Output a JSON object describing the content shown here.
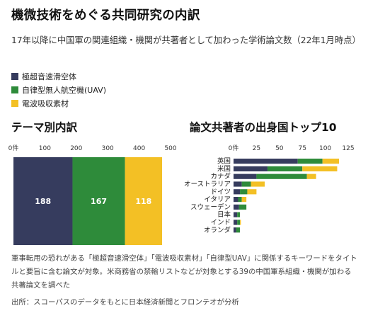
{
  "header": {
    "title": "機微技術をめぐる共同研究の内訳",
    "subtitle": "17年以降に中国軍の関連組織・機関が共著者として加わった学術論文数（22年1月時点）"
  },
  "legend": [
    {
      "label": "極超音速滑空体",
      "color": "#363c5e"
    },
    {
      "label": "自律型無人航空機(UAV)",
      "color": "#2e8b3a"
    },
    {
      "label": "電波吸収素材",
      "color": "#f3c025"
    }
  ],
  "chart_data": [
    {
      "type": "bar",
      "orientation": "horizontal",
      "stacked": true,
      "title": "テーマ別内訳",
      "xlim": [
        0,
        500
      ],
      "ticks": [
        0,
        100,
        200,
        300,
        400,
        500
      ],
      "tick_labels": [
        "0件",
        "100",
        "200",
        "300",
        "400",
        "500"
      ],
      "categories": [
        ""
      ],
      "series": [
        {
          "name": "極超音速滑空体",
          "values": [
            188
          ]
        },
        {
          "name": "自律型無人航空機(UAV)",
          "values": [
            167
          ]
        },
        {
          "name": "電波吸収素材",
          "values": [
            118
          ]
        }
      ],
      "data_labels": [
        "188",
        "167",
        "118"
      ]
    },
    {
      "type": "bar",
      "orientation": "horizontal",
      "stacked": true,
      "title": "論文共著者の出身国トップ10",
      "xlim": [
        0,
        125
      ],
      "ticks": [
        0,
        25,
        50,
        75,
        100,
        125
      ],
      "tick_labels": [
        "0件",
        "25",
        "50",
        "75",
        "100",
        "125"
      ],
      "categories": [
        "英国",
        "米国",
        "カナダ",
        "オーストラリア",
        "ドイツ",
        "イタリア",
        "スウェーデン",
        "日本",
        "インド",
        "オランダ"
      ],
      "series": [
        {
          "name": "極超音速滑空体",
          "values": [
            70,
            37,
            25,
            9,
            7,
            5,
            6,
            4,
            4,
            3
          ]
        },
        {
          "name": "自律型無人航空機(UAV)",
          "values": [
            27,
            38,
            55,
            10,
            8,
            4,
            8,
            3,
            3,
            4
          ]
        },
        {
          "name": "電波吸収素材",
          "values": [
            18,
            38,
            10,
            15,
            10,
            5,
            0,
            0,
            1,
            0
          ]
        }
      ]
    }
  ],
  "notes": {
    "text": "軍事転用の恐れがある「極超音速滑空体」「電波吸収素材」「自律型UAV」に関係するキーワードをタイトルと要旨に含む論文が対象。米商務省の禁輸リストなどが対象とする39の中国軍系組織・機関が加わる共著論文を調べた",
    "source": "出所：スコーパスのデータをもとに日本経済新聞とフロンテオが分析"
  }
}
